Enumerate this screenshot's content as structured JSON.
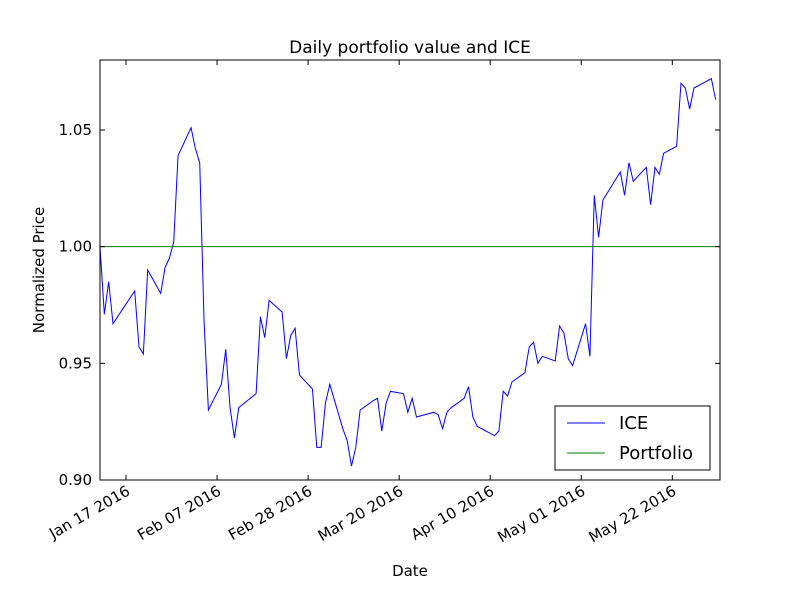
{
  "chart_data": {
    "type": "line",
    "title": "Daily portfolio value and ICE",
    "xlabel": "Date",
    "ylabel": "Normalized Price",
    "x_range": [
      "2016-01-11",
      "2016-06-02"
    ],
    "ylim": [
      0.9,
      1.08
    ],
    "y_ticks": [
      0.9,
      0.95,
      1.0,
      1.05
    ],
    "y_tick_labels": [
      "0.90",
      "0.95",
      "1.00",
      "1.05"
    ],
    "x_ticks": [
      "2016-01-17",
      "2016-02-07",
      "2016-02-28",
      "2016-03-20",
      "2016-04-10",
      "2016-05-01",
      "2016-05-22"
    ],
    "x_tick_labels": [
      "Jan 17 2016",
      "Feb 07 2016",
      "Feb 28 2016",
      "Mar 20 2016",
      "Apr 10 2016",
      "May 01 2016",
      "May 22 2016"
    ],
    "grid": false,
    "legend": {
      "placement": "lower-right",
      "entries": [
        "ICE",
        "Portfolio"
      ]
    },
    "series": [
      {
        "name": "ICE",
        "color": "#0000ff",
        "points": [
          [
            "2016-01-11",
            1.0
          ],
          [
            "2016-01-12",
            0.971
          ],
          [
            "2016-01-13",
            0.985
          ],
          [
            "2016-01-14",
            0.967
          ],
          [
            "2016-01-19",
            0.981
          ],
          [
            "2016-01-20",
            0.957
          ],
          [
            "2016-01-21",
            0.954
          ],
          [
            "2016-01-22",
            0.99
          ],
          [
            "2016-01-25",
            0.98
          ],
          [
            "2016-01-26",
            0.991
          ],
          [
            "2016-01-27",
            0.995
          ],
          [
            "2016-01-28",
            1.002
          ],
          [
            "2016-01-29",
            1.039
          ],
          [
            "2016-02-01",
            1.051
          ],
          [
            "2016-02-02",
            1.042
          ],
          [
            "2016-02-03",
            1.036
          ],
          [
            "2016-02-04",
            0.968
          ],
          [
            "2016-02-05",
            0.93
          ],
          [
            "2016-02-08",
            0.941
          ],
          [
            "2016-02-09",
            0.956
          ],
          [
            "2016-02-10",
            0.931
          ],
          [
            "2016-02-11",
            0.918
          ],
          [
            "2016-02-12",
            0.931
          ],
          [
            "2016-02-16",
            0.937
          ],
          [
            "2016-02-17",
            0.97
          ],
          [
            "2016-02-18",
            0.961
          ],
          [
            "2016-02-19",
            0.977
          ],
          [
            "2016-02-22",
            0.972
          ],
          [
            "2016-02-23",
            0.952
          ],
          [
            "2016-02-24",
            0.962
          ],
          [
            "2016-02-25",
            0.965
          ],
          [
            "2016-02-26",
            0.945
          ],
          [
            "2016-02-29",
            0.939
          ],
          [
            "2016-03-01",
            0.914
          ],
          [
            "2016-03-02",
            0.914
          ],
          [
            "2016-03-03",
            0.933
          ],
          [
            "2016-03-04",
            0.941
          ],
          [
            "2016-03-07",
            0.922
          ],
          [
            "2016-03-08",
            0.917
          ],
          [
            "2016-03-09",
            0.906
          ],
          [
            "2016-03-10",
            0.914
          ],
          [
            "2016-03-11",
            0.93
          ],
          [
            "2016-03-14",
            0.934
          ],
          [
            "2016-03-15",
            0.935
          ],
          [
            "2016-03-16",
            0.921
          ],
          [
            "2016-03-17",
            0.933
          ],
          [
            "2016-03-18",
            0.938
          ],
          [
            "2016-03-21",
            0.937
          ],
          [
            "2016-03-22",
            0.929
          ],
          [
            "2016-03-23",
            0.935
          ],
          [
            "2016-03-24",
            0.927
          ],
          [
            "2016-03-28",
            0.929
          ],
          [
            "2016-03-29",
            0.928
          ],
          [
            "2016-03-30",
            0.922
          ],
          [
            "2016-03-31",
            0.929
          ],
          [
            "2016-04-01",
            0.931
          ],
          [
            "2016-04-04",
            0.935
          ],
          [
            "2016-04-05",
            0.94
          ],
          [
            "2016-04-06",
            0.927
          ],
          [
            "2016-04-07",
            0.923
          ],
          [
            "2016-04-08",
            0.922
          ],
          [
            "2016-04-11",
            0.919
          ],
          [
            "2016-04-12",
            0.921
          ],
          [
            "2016-04-13",
            0.938
          ],
          [
            "2016-04-14",
            0.936
          ],
          [
            "2016-04-15",
            0.942
          ],
          [
            "2016-04-18",
            0.946
          ],
          [
            "2016-04-19",
            0.957
          ],
          [
            "2016-04-20",
            0.959
          ],
          [
            "2016-04-21",
            0.95
          ],
          [
            "2016-04-22",
            0.953
          ],
          [
            "2016-04-25",
            0.951
          ],
          [
            "2016-04-26",
            0.966
          ],
          [
            "2016-04-27",
            0.963
          ],
          [
            "2016-04-28",
            0.952
          ],
          [
            "2016-04-29",
            0.949
          ],
          [
            "2016-05-02",
            0.967
          ],
          [
            "2016-05-03",
            0.953
          ],
          [
            "2016-05-04",
            1.022
          ],
          [
            "2016-05-05",
            1.004
          ],
          [
            "2016-05-06",
            1.02
          ],
          [
            "2016-05-09",
            1.029
          ],
          [
            "2016-05-10",
            1.032
          ],
          [
            "2016-05-11",
            1.022
          ],
          [
            "2016-05-12",
            1.036
          ],
          [
            "2016-05-13",
            1.028
          ],
          [
            "2016-05-16",
            1.034
          ],
          [
            "2016-05-17",
            1.018
          ],
          [
            "2016-05-18",
            1.034
          ],
          [
            "2016-05-19",
            1.031
          ],
          [
            "2016-05-20",
            1.04
          ],
          [
            "2016-05-23",
            1.043
          ],
          [
            "2016-05-24",
            1.07
          ],
          [
            "2016-05-25",
            1.068
          ],
          [
            "2016-05-26",
            1.059
          ],
          [
            "2016-05-27",
            1.068
          ],
          [
            "2016-05-31",
            1.072
          ],
          [
            "2016-06-01",
            1.063
          ]
        ]
      },
      {
        "name": "Portfolio",
        "color": "#008000",
        "points": [
          [
            "2016-01-11",
            1.0
          ],
          [
            "2016-06-02",
            1.0
          ]
        ]
      }
    ]
  }
}
